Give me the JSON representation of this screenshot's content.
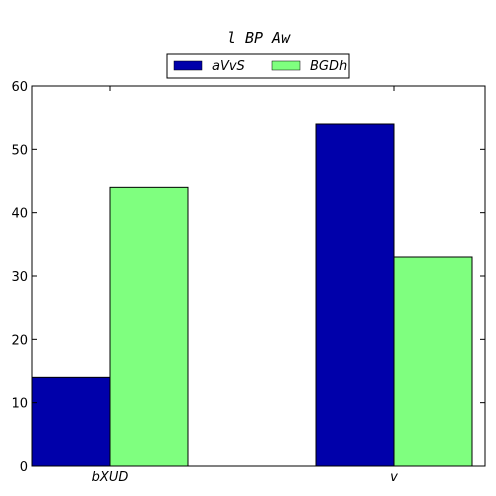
{
  "chart_data": {
    "type": "bar",
    "title": "l BP Aw",
    "categories": [
      "bXUD",
      "v"
    ],
    "series": [
      {
        "name": "aVvS",
        "values": [
          14,
          54
        ],
        "color": "#0000aa"
      },
      {
        "name": "BGDh",
        "values": [
          44,
          33
        ],
        "color": "#7fff7f"
      }
    ],
    "ylim": [
      0,
      60
    ],
    "yticks": [
      0,
      10,
      20,
      30,
      40,
      50,
      60
    ],
    "xlabel": "",
    "ylabel": "",
    "grid": false,
    "legend_position": "top-center"
  }
}
